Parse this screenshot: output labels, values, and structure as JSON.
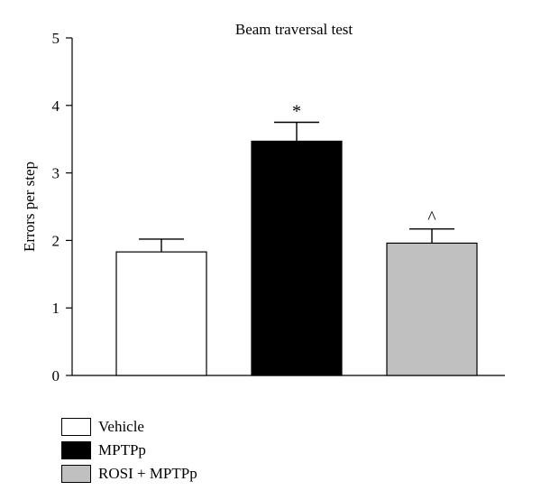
{
  "chart_data": {
    "type": "bar",
    "title": "Beam traversal test",
    "ylabel": "Errors per step",
    "xlabel": "",
    "ylim": [
      0,
      5
    ],
    "yticks": [
      0,
      1,
      2,
      3,
      4,
      5
    ],
    "grid": false,
    "legend_position": "bottom-left",
    "categories": [
      "Vehicle",
      "MPTPp",
      "ROSI + MPTPp"
    ],
    "values": [
      1.83,
      3.47,
      1.96
    ],
    "errors": [
      0.19,
      0.28,
      0.21
    ],
    "annotations": [
      "",
      "*",
      "^"
    ],
    "colors": [
      "#ffffff",
      "#000000",
      "#c0c0c0"
    ]
  }
}
